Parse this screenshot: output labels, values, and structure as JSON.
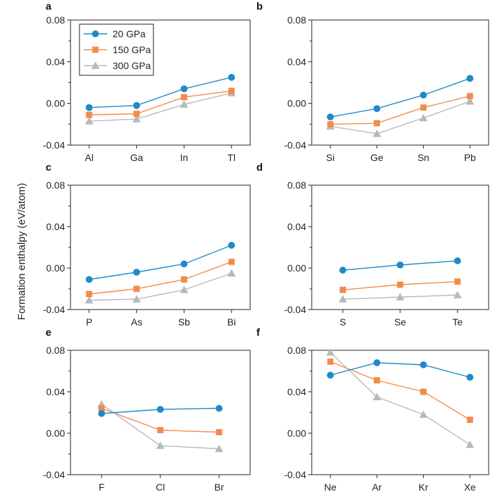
{
  "figure": {
    "ylabel": "Formation enthalpy (eV/atom)",
    "legend": [
      "20 GPa",
      "150 GPa",
      "300 GPa"
    ]
  },
  "colors": {
    "20 GPa": "#1f8ac9",
    "150 GPa": "#f28b4a",
    "300 GPa": "#b9b9b9"
  },
  "chart_data": [
    {
      "panel": "a",
      "type": "line",
      "categories": [
        "Al",
        "Ga",
        "In",
        "Tl"
      ],
      "ylim": [
        -0.04,
        0.08
      ],
      "yticks": [
        "-0.04",
        "0.00",
        "0.04",
        "0.08"
      ],
      "legend_position": "top-left",
      "series": [
        {
          "name": "20 GPa",
          "marker": "circle",
          "values": [
            -0.004,
            -0.002,
            0.014,
            0.025
          ]
        },
        {
          "name": "150 GPa",
          "marker": "square",
          "values": [
            -0.011,
            -0.01,
            0.006,
            0.012
          ]
        },
        {
          "name": "300 GPa",
          "marker": "triangle",
          "values": [
            -0.017,
            -0.015,
            -0.001,
            0.01
          ]
        }
      ]
    },
    {
      "panel": "b",
      "type": "line",
      "categories": [
        "Si",
        "Ge",
        "Sn",
        "Pb"
      ],
      "ylim": [
        -0.04,
        0.08
      ],
      "yticks": [
        "-0.04",
        "0.00",
        "0.04",
        "0.08"
      ],
      "series": [
        {
          "name": "20 GPa",
          "marker": "circle",
          "values": [
            -0.013,
            -0.005,
            0.008,
            0.024
          ]
        },
        {
          "name": "150 GPa",
          "marker": "square",
          "values": [
            -0.02,
            -0.019,
            -0.004,
            0.007
          ]
        },
        {
          "name": "300 GPa",
          "marker": "triangle",
          "values": [
            -0.022,
            -0.029,
            -0.014,
            0.002
          ]
        }
      ]
    },
    {
      "panel": "c",
      "type": "line",
      "categories": [
        "P",
        "As",
        "Sb",
        "Bi"
      ],
      "ylim": [
        -0.04,
        0.08
      ],
      "yticks": [
        "-0.04",
        "0.00",
        "0.04",
        "0.08"
      ],
      "series": [
        {
          "name": "20 GPa",
          "marker": "circle",
          "values": [
            -0.011,
            -0.004,
            0.004,
            0.022
          ]
        },
        {
          "name": "150 GPa",
          "marker": "square",
          "values": [
            -0.025,
            -0.02,
            -0.011,
            0.006
          ]
        },
        {
          "name": "300 GPa",
          "marker": "triangle",
          "values": [
            -0.031,
            -0.03,
            -0.021,
            -0.005
          ]
        }
      ]
    },
    {
      "panel": "d",
      "type": "line",
      "categories": [
        "S",
        "Se",
        "Te"
      ],
      "ylim": [
        -0.04,
        0.08
      ],
      "yticks": [
        "-0.04",
        "0.00",
        "0.04",
        "0.08"
      ],
      "series": [
        {
          "name": "20 GPa",
          "marker": "circle",
          "values": [
            -0.002,
            0.003,
            0.007
          ]
        },
        {
          "name": "150 GPa",
          "marker": "square",
          "values": [
            -0.021,
            -0.016,
            -0.013
          ]
        },
        {
          "name": "300 GPa",
          "marker": "triangle",
          "values": [
            -0.03,
            -0.028,
            -0.026
          ]
        }
      ]
    },
    {
      "panel": "e",
      "type": "line",
      "categories": [
        "F",
        "Cl",
        "Br"
      ],
      "ylim": [
        -0.04,
        0.08
      ],
      "yticks": [
        "-0.04",
        "0.00",
        "0.04",
        "0.08"
      ],
      "series": [
        {
          "name": "20 GPa",
          "marker": "circle",
          "values": [
            0.019,
            0.023,
            0.024
          ]
        },
        {
          "name": "150 GPa",
          "marker": "square",
          "values": [
            0.024,
            0.003,
            0.001
          ]
        },
        {
          "name": "300 GPa",
          "marker": "triangle",
          "values": [
            0.028,
            -0.012,
            -0.015
          ]
        }
      ]
    },
    {
      "panel": "f",
      "type": "line",
      "categories": [
        "Ne",
        "Ar",
        "Kr",
        "Xe"
      ],
      "ylim": [
        -0.04,
        0.08
      ],
      "yticks": [
        "-0.04",
        "0.00",
        "0.04",
        "0.08"
      ],
      "series": [
        {
          "name": "20 GPa",
          "marker": "circle",
          "values": [
            0.056,
            0.068,
            0.066,
            0.054
          ]
        },
        {
          "name": "150 GPa",
          "marker": "square",
          "values": [
            0.069,
            0.051,
            0.04,
            0.013
          ]
        },
        {
          "name": "300 GPa",
          "marker": "triangle",
          "values": [
            0.078,
            0.035,
            0.018,
            -0.011
          ]
        }
      ]
    }
  ]
}
